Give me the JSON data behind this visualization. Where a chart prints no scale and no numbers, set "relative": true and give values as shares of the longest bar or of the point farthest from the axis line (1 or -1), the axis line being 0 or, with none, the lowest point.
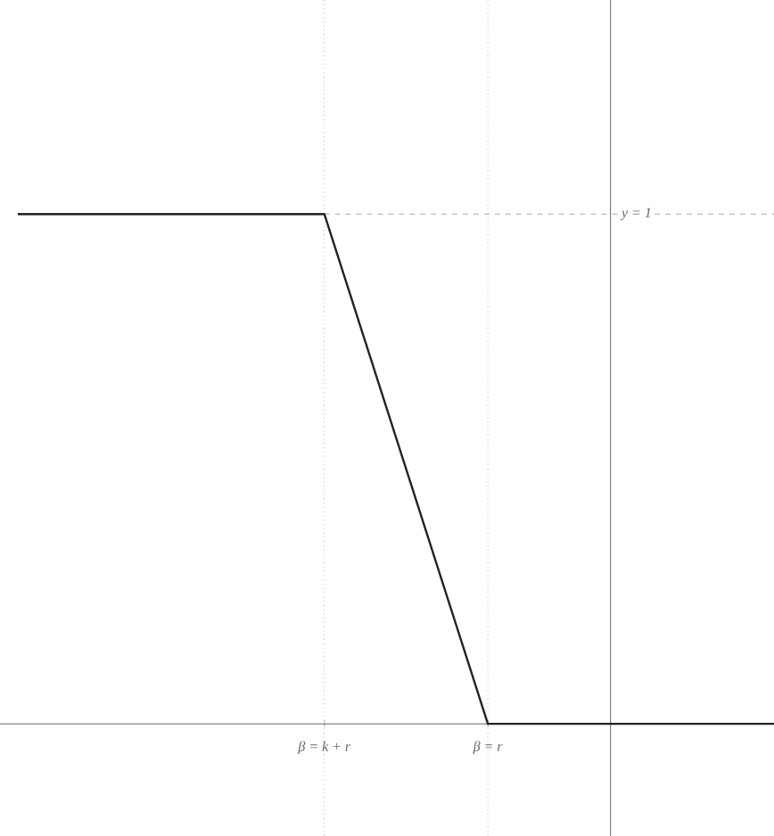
{
  "chart_data": {
    "type": "line",
    "relative": true,
    "categories": [
      null,
      null,
      null,
      null,
      null,
      null,
      null,
      null,
      null,
      null,
      null,
      null,
      null,
      null,
      null,
      "β = k + r",
      null,
      null,
      null,
      null,
      null,
      null,
      null,
      "β = r",
      null,
      null,
      null,
      null,
      null,
      null,
      null,
      null,
      null,
      null,
      null,
      null,
      null,
      null
    ],
    "series": [
      {
        "color": "#222222",
        "values": [
          1,
          1,
          1,
          1,
          1,
          1,
          1,
          1,
          1,
          1,
          1,
          1,
          1,
          1,
          1,
          1,
          0.875,
          0.75,
          0.625,
          0.5,
          0.375,
          0.25,
          0.125,
          0,
          0,
          0,
          0,
          0,
          0,
          0,
          0,
          0,
          0,
          0,
          0,
          0,
          0,
          0
        ]
      }
    ],
    "line_style": "solid",
    "marker": "none",
    "grid": "x",
    "ref_lines": [
      {
        "axis": "y",
        "value": 1,
        "label": "y = 1",
        "color": "#aaaaaa",
        "line_style": "dashed"
      }
    ]
  }
}
